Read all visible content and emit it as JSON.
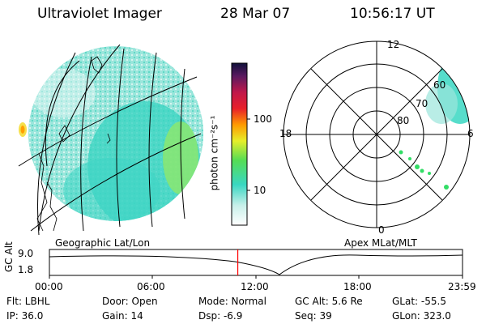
{
  "header": {
    "title": "Ultraviolet Imager",
    "date": "28 Mar 07",
    "time": "10:56:17 UT"
  },
  "left_panel": {
    "label": "Geographic Lat/Lon"
  },
  "right_panel": {
    "label": "Apex MLat/MLT",
    "mlt_labels": [
      "12",
      "18",
      "6",
      "0"
    ],
    "mlat_labels": [
      "60",
      "70",
      "80"
    ]
  },
  "colorbar": {
    "unit": "photon cm⁻²s⁻¹",
    "ticks": [
      "100",
      "10"
    ]
  },
  "altitude_plot": {
    "ylabel": "GC Alt",
    "yticks": [
      "9.0",
      "1.8"
    ],
    "xticks": [
      "00:00",
      "06:00",
      "12:00",
      "18:00",
      "23:59"
    ],
    "current_time_fraction": 0.456
  },
  "info": {
    "flt": "Flt: LBHL",
    "ip": "IP: 36.0",
    "door": "Door: Open",
    "gain": "Gain: 14",
    "mode": "Mode: Normal",
    "dsp": "Dsp:  -6.9",
    "gc_alt": "GC Alt: 5.6 Re",
    "seq": "Seq: 39",
    "glat": "GLat: -55.5",
    "glon": "GLon: 323.0"
  },
  "colors": {
    "accent_line": "#ff0000",
    "emission_main": "#3ad7c2",
    "emission_bright": "#8fe86a"
  }
}
